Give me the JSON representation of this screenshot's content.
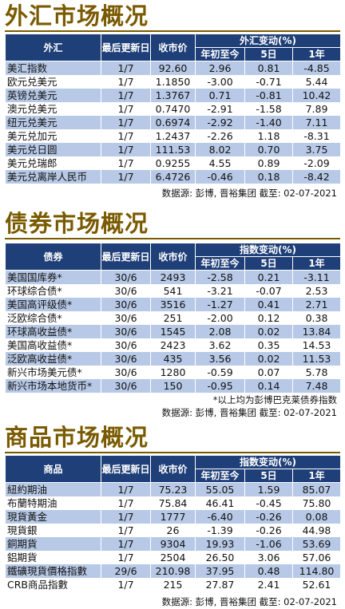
{
  "fx": {
    "title": "外汇市场概况",
    "headers": {
      "name": "外汇",
      "updated": "最后更新日",
      "close": "收市价",
      "change_group": "外汇变动(%)",
      "ytd": "年初至今",
      "d5": "5日",
      "y1": "1年"
    },
    "rows": [
      [
        "美汇指数",
        "1/7",
        "92.60",
        "2.96",
        "0.81",
        "-4.85"
      ],
      [
        "欧元兑美元",
        "1/7",
        "1.1850",
        "-3.00",
        "-0.71",
        "5.44"
      ],
      [
        "英镑兑美元",
        "1/7",
        "1.3767",
        "0.71",
        "-0.81",
        "10.42"
      ],
      [
        "澳元兑美元",
        "1/7",
        "0.7470",
        "-2.91",
        "-1.58",
        "7.89"
      ],
      [
        "纽元兑美元",
        "1/7",
        "0.6974",
        "-2.92",
        "-1.40",
        "7.11"
      ],
      [
        "美元兑加元",
        "1/7",
        "1.2437",
        "-2.26",
        "1.18",
        "-8.31"
      ],
      [
        "美元兑日圆",
        "1/7",
        "111.53",
        "8.02",
        "0.70",
        "3.75"
      ],
      [
        "美元兑瑞郎",
        "1/7",
        "0.9255",
        "4.55",
        "0.89",
        "-2.09"
      ],
      [
        "美元兑离岸人民币",
        "1/7",
        "6.4726",
        "-0.46",
        "0.18",
        "-8.42"
      ]
    ],
    "source": "数据源: 彭博, 晋裕集团 截至: 02-07-2021"
  },
  "bonds": {
    "title": "债券市场概况",
    "headers": {
      "name": "债券",
      "updated": "最后更新日",
      "close": "收市价",
      "change_group": "指数变动(%)",
      "ytd": "年初至今",
      "d5": "5日",
      "y1": "1年"
    },
    "rows": [
      [
        "美国国库券*",
        "30/6",
        "2493",
        "-2.58",
        "0.21",
        "-3.11"
      ],
      [
        "环球综合债*",
        "30/6",
        "541",
        "-3.21",
        "-0.07",
        "2.53"
      ],
      [
        "美国高评级债*",
        "30/6",
        "3516",
        "-1.27",
        "0.41",
        "2.71"
      ],
      [
        "泛欧综合债*",
        "30/6",
        "251",
        "-2.00",
        "0.12",
        "0.38"
      ],
      [
        "环球高收益债*",
        "30/6",
        "1545",
        "2.08",
        "0.02",
        "13.84"
      ],
      [
        "美国高收益债*",
        "30/6",
        "2423",
        "3.62",
        "0.35",
        "14.53"
      ],
      [
        "泛欧高收益债*",
        "30/6",
        "435",
        "3.56",
        "0.02",
        "11.53"
      ],
      [
        "新兴市场美元债*",
        "30/6",
        "1280",
        "-0.59",
        "0.07",
        "5.78"
      ],
      [
        "新兴市场本地货币*",
        "30/6",
        "150",
        "-0.95",
        "0.14",
        "7.48"
      ]
    ],
    "note": "*以上均为彭博巴克莱债券指数",
    "source": "数据源: 彭博, 晋裕集团 截至: 02-07-2021"
  },
  "commodities": {
    "title": "商品市场概况",
    "headers": {
      "name": "商品",
      "updated": "最后更新日",
      "close": "收市价",
      "change_group": "指数变动(%)",
      "ytd": "年初至今",
      "d5": "5日",
      "y1": "1年"
    },
    "rows": [
      [
        "紐約期油",
        "1/7",
        "75.23",
        "55.05",
        "1.59",
        "85.07"
      ],
      [
        "布蘭特期油",
        "1/7",
        "75.84",
        "46.41",
        "-0.45",
        "75.80"
      ],
      [
        "現貨黃金",
        "1/7",
        "1777",
        "-6.40",
        "-0.26",
        "0.08"
      ],
      [
        "現貨銀",
        "1/7",
        "26",
        "-1.39",
        "-0.26",
        "44.98"
      ],
      [
        "銅期貨",
        "1/7",
        "9304",
        "19.93",
        "-1.06",
        "53.69"
      ],
      [
        "鋁期貨",
        "1/7",
        "2504",
        "26.50",
        "3.06",
        "57.06"
      ],
      [
        "鐵礦現貨價格指數",
        "29/6",
        "210.98",
        "37.95",
        "0.48",
        "114.80"
      ],
      [
        "CRB商品指數",
        "1/7",
        "215",
        "27.87",
        "2.41",
        "52.61"
      ]
    ],
    "source": "数据源: 彭博, 晋裕集团 截至: 02-07-2021"
  }
}
